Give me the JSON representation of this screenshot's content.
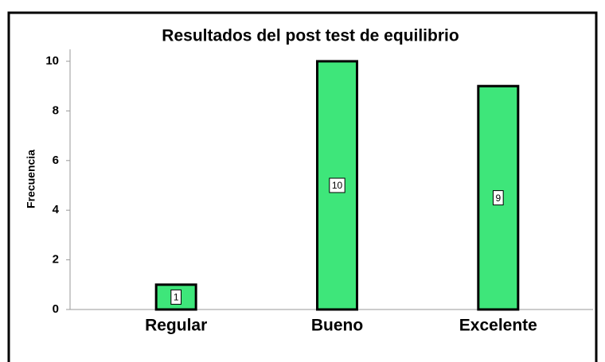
{
  "chart_data": {
    "type": "bar",
    "title": "Resultados del post test de equilibrio",
    "y_label": "Frecuencia",
    "categories": [
      "Regular",
      "Bueno",
      "Excelente"
    ],
    "values": [
      1,
      10,
      9
    ],
    "color": "#3ee67a",
    "ylim": [
      0,
      10
    ],
    "yticks": [
      0,
      2,
      4,
      6,
      8,
      10
    ],
    "grid": false
  }
}
